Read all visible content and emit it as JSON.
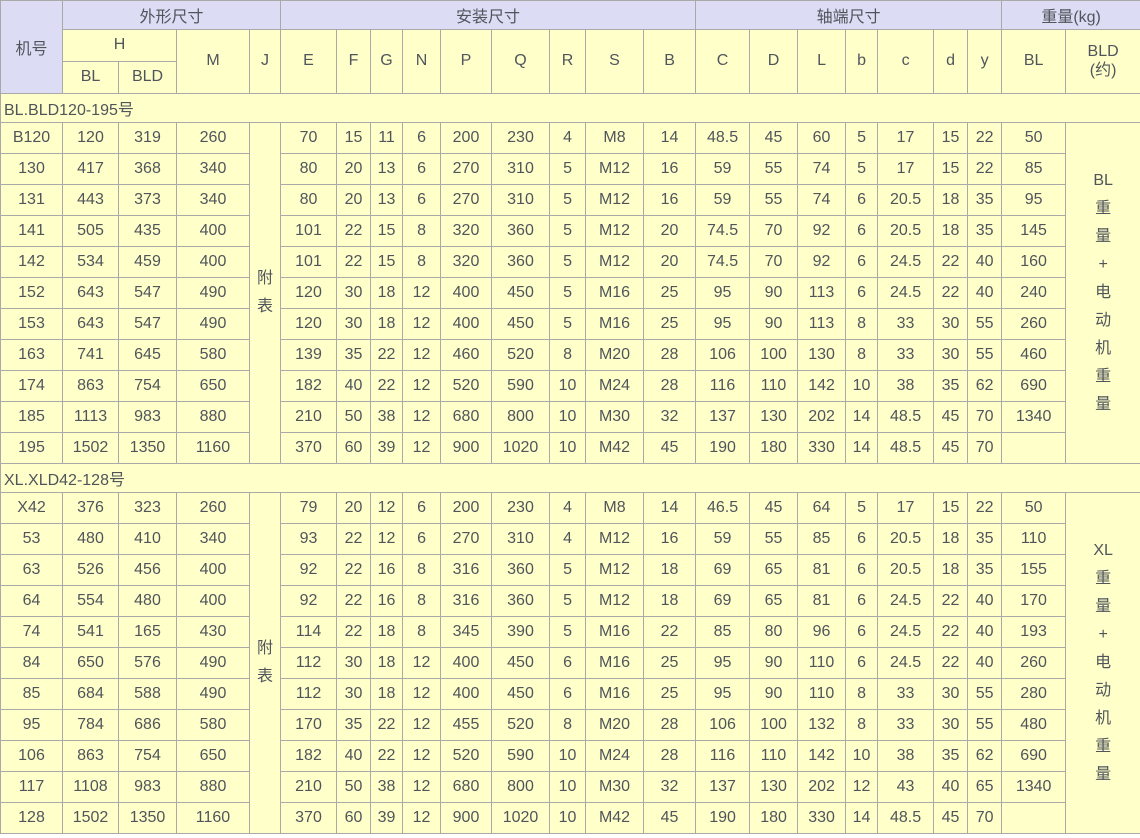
{
  "colors": {
    "band_bg": "#dcdcf4",
    "cell_bg": "#ffffc9",
    "border": "#a9a9a9",
    "text": "#50555c"
  },
  "header": {
    "rows": [
      [
        {
          "label": "机号",
          "rowspan": 3,
          "name": "machine-no-header"
        },
        {
          "label": "外形尺寸",
          "colspan": 4,
          "name": "band-outline-dimensions"
        },
        {
          "label": "安装尺寸",
          "colspan": 9,
          "name": "band-mounting-dimensions"
        },
        {
          "label": "轴端尺寸",
          "colspan": 7,
          "name": "band-shaft-end-dimensions"
        },
        {
          "label": "重量(kg)",
          "colspan": 2,
          "name": "band-weight-kg"
        }
      ],
      [
        {
          "label": "H",
          "colspan": 2,
          "name": "col-header-H"
        },
        {
          "label": "M",
          "rowspan": 2,
          "name": "col-header-M"
        },
        {
          "label": "J",
          "rowspan": 2,
          "name": "col-header-J"
        },
        {
          "label": "E",
          "rowspan": 2,
          "name": "col-header-E"
        },
        {
          "label": "F",
          "rowspan": 2,
          "name": "col-header-F"
        },
        {
          "label": "G",
          "rowspan": 2,
          "name": "col-header-G"
        },
        {
          "label": "N",
          "rowspan": 2,
          "name": "col-header-N"
        },
        {
          "label": "P",
          "rowspan": 2,
          "name": "col-header-P"
        },
        {
          "label": "Q",
          "rowspan": 2,
          "name": "col-header-Q"
        },
        {
          "label": "R",
          "rowspan": 2,
          "name": "col-header-R"
        },
        {
          "label": "S",
          "rowspan": 2,
          "name": "col-header-S"
        },
        {
          "label": "B",
          "rowspan": 2,
          "name": "col-header-B"
        },
        {
          "label": "C",
          "rowspan": 2,
          "name": "col-header-C"
        },
        {
          "label": "D",
          "rowspan": 2,
          "name": "col-header-D"
        },
        {
          "label": "L",
          "rowspan": 2,
          "name": "col-header-L"
        },
        {
          "label": "b",
          "rowspan": 2,
          "name": "col-header-b"
        },
        {
          "label": "c",
          "rowspan": 2,
          "name": "col-header-c"
        },
        {
          "label": "d",
          "rowspan": 2,
          "name": "col-header-d"
        },
        {
          "label": "y",
          "rowspan": 2,
          "name": "col-header-y"
        },
        {
          "label": "BL",
          "rowspan": 2,
          "name": "col-header-BL-weight"
        },
        {
          "lines": [
            "BLD",
            "(约)"
          ],
          "rowspan": 2,
          "name": "col-header-BLD-weight"
        }
      ],
      [
        {
          "label": "BL",
          "name": "col-header-H-BL"
        },
        {
          "label": "BLD",
          "name": "col-header-H-BLD"
        }
      ]
    ]
  },
  "sections": [
    {
      "title": "BL.BLD120-195号",
      "j_lines": [
        "附",
        "表"
      ],
      "weight_lines": [
        "BL",
        "重",
        "量",
        "+",
        "电",
        "动",
        "机",
        "重",
        "量"
      ],
      "rows": [
        [
          "B120",
          "120",
          "319",
          "260",
          "70",
          "15",
          "11",
          "6",
          "200",
          "230",
          "4",
          "M8",
          "14",
          "48.5",
          "45",
          "60",
          "5",
          "17",
          "15",
          "22",
          "50"
        ],
        [
          "130",
          "417",
          "368",
          "340",
          "80",
          "20",
          "13",
          "6",
          "270",
          "310",
          "5",
          "M12",
          "16",
          "59",
          "55",
          "74",
          "5",
          "17",
          "15",
          "22",
          "85"
        ],
        [
          "131",
          "443",
          "373",
          "340",
          "80",
          "20",
          "13",
          "6",
          "270",
          "310",
          "5",
          "M12",
          "16",
          "59",
          "55",
          "74",
          "6",
          "20.5",
          "18",
          "35",
          "95"
        ],
        [
          "141",
          "505",
          "435",
          "400",
          "101",
          "22",
          "15",
          "8",
          "320",
          "360",
          "5",
          "M12",
          "20",
          "74.5",
          "70",
          "92",
          "6",
          "20.5",
          "18",
          "35",
          "145"
        ],
        [
          "142",
          "534",
          "459",
          "400",
          "101",
          "22",
          "15",
          "8",
          "320",
          "360",
          "5",
          "M12",
          "20",
          "74.5",
          "70",
          "92",
          "6",
          "24.5",
          "22",
          "40",
          "160"
        ],
        [
          "152",
          "643",
          "547",
          "490",
          "120",
          "30",
          "18",
          "12",
          "400",
          "450",
          "5",
          "M16",
          "25",
          "95",
          "90",
          "113",
          "6",
          "24.5",
          "22",
          "40",
          "240"
        ],
        [
          "153",
          "643",
          "547",
          "490",
          "120",
          "30",
          "18",
          "12",
          "400",
          "450",
          "5",
          "M16",
          "25",
          "95",
          "90",
          "113",
          "8",
          "33",
          "30",
          "55",
          "260"
        ],
        [
          "163",
          "741",
          "645",
          "580",
          "139",
          "35",
          "22",
          "12",
          "460",
          "520",
          "8",
          "M20",
          "28",
          "106",
          "100",
          "130",
          "8",
          "33",
          "30",
          "55",
          "460"
        ],
        [
          "174",
          "863",
          "754",
          "650",
          "182",
          "40",
          "22",
          "12",
          "520",
          "590",
          "10",
          "M24",
          "28",
          "116",
          "110",
          "142",
          "10",
          "38",
          "35",
          "62",
          "690"
        ],
        [
          "185",
          "1113",
          "983",
          "880",
          "210",
          "50",
          "38",
          "12",
          "680",
          "800",
          "10",
          "M30",
          "32",
          "137",
          "130",
          "202",
          "14",
          "48.5",
          "45",
          "70",
          "1340"
        ],
        [
          "195",
          "1502",
          "1350",
          "1160",
          "370",
          "60",
          "39",
          "12",
          "900",
          "1020",
          "10",
          "M42",
          "45",
          "190",
          "180",
          "330",
          "14",
          "48.5",
          "45",
          "70",
          ""
        ]
      ]
    },
    {
      "title": "XL.XLD42-128号",
      "j_lines": [
        "附",
        "表"
      ],
      "weight_lines": [
        "XL",
        "重",
        "量",
        "+",
        "电",
        "动",
        "机",
        "重",
        "量"
      ],
      "rows": [
        [
          "X42",
          "376",
          "323",
          "260",
          "79",
          "20",
          "12",
          "6",
          "200",
          "230",
          "4",
          "M8",
          "14",
          "46.5",
          "45",
          "64",
          "5",
          "17",
          "15",
          "22",
          "50"
        ],
        [
          "53",
          "480",
          "410",
          "340",
          "93",
          "22",
          "12",
          "6",
          "270",
          "310",
          "4",
          "M12",
          "16",
          "59",
          "55",
          "85",
          "6",
          "20.5",
          "18",
          "35",
          "110"
        ],
        [
          "63",
          "526",
          "456",
          "400",
          "92",
          "22",
          "16",
          "8",
          "316",
          "360",
          "5",
          "M12",
          "18",
          "69",
          "65",
          "81",
          "6",
          "20.5",
          "18",
          "35",
          "155"
        ],
        [
          "64",
          "554",
          "480",
          "400",
          "92",
          "22",
          "16",
          "8",
          "316",
          "360",
          "5",
          "M12",
          "18",
          "69",
          "65",
          "81",
          "6",
          "24.5",
          "22",
          "40",
          "170"
        ],
        [
          "74",
          "541",
          "165",
          "430",
          "114",
          "22",
          "18",
          "8",
          "345",
          "390",
          "5",
          "M16",
          "22",
          "85",
          "80",
          "96",
          "6",
          "24.5",
          "22",
          "40",
          "193"
        ],
        [
          "84",
          "650",
          "576",
          "490",
          "112",
          "30",
          "18",
          "12",
          "400",
          "450",
          "6",
          "M16",
          "25",
          "95",
          "90",
          "110",
          "6",
          "24.5",
          "22",
          "40",
          "260"
        ],
        [
          "85",
          "684",
          "588",
          "490",
          "112",
          "30",
          "18",
          "12",
          "400",
          "450",
          "6",
          "M16",
          "25",
          "95",
          "90",
          "110",
          "8",
          "33",
          "30",
          "55",
          "280"
        ],
        [
          "95",
          "784",
          "686",
          "580",
          "170",
          "35",
          "22",
          "12",
          "455",
          "520",
          "8",
          "M20",
          "28",
          "106",
          "100",
          "132",
          "8",
          "33",
          "30",
          "55",
          "480"
        ],
        [
          "106",
          "863",
          "754",
          "650",
          "182",
          "40",
          "22",
          "12",
          "520",
          "590",
          "10",
          "M24",
          "28",
          "116",
          "110",
          "142",
          "10",
          "38",
          "35",
          "62",
          "690"
        ],
        [
          "117",
          "1108",
          "983",
          "880",
          "210",
          "50",
          "38",
          "12",
          "680",
          "800",
          "10",
          "M30",
          "32",
          "137",
          "130",
          "202",
          "12",
          "43",
          "40",
          "65",
          "1340"
        ],
        [
          "128",
          "1502",
          "1350",
          "1160",
          "370",
          "60",
          "39",
          "12",
          "900",
          "1020",
          "10",
          "M42",
          "45",
          "190",
          "180",
          "330",
          "14",
          "48.5",
          "45",
          "70",
          ""
        ]
      ]
    }
  ]
}
